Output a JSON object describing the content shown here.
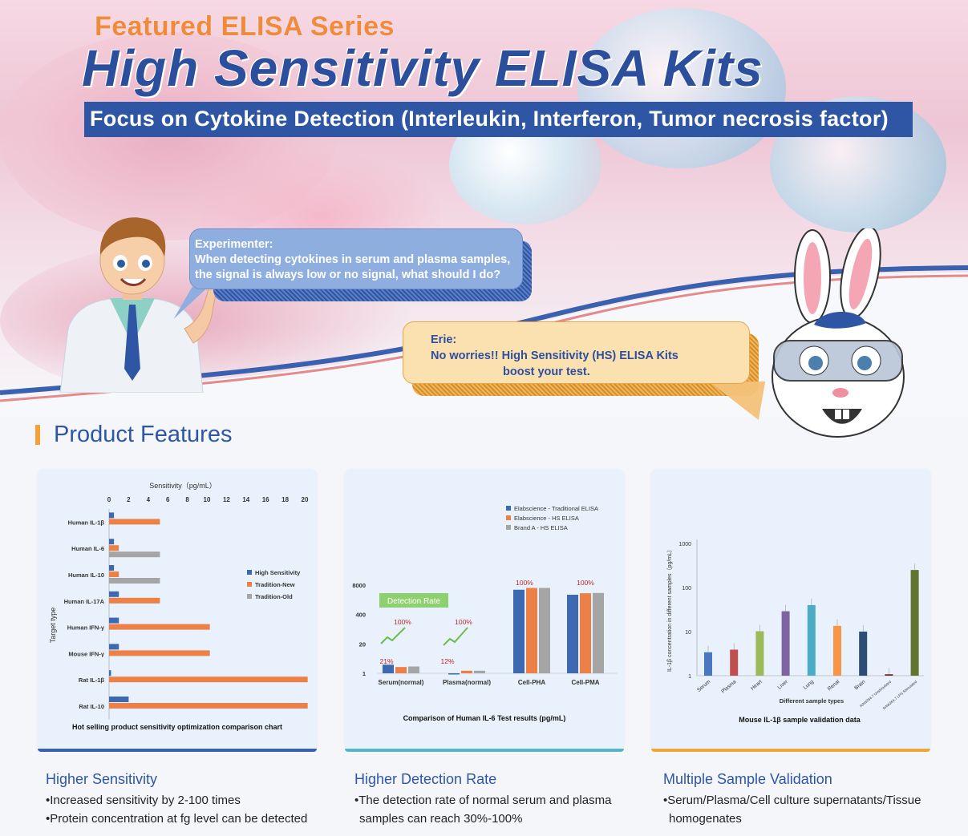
{
  "hero": {
    "series_label": "Featured ELISA Series",
    "title": "High Sensitivity ELISA Kits",
    "subtitle": "Focus on Cytokine Detection (Interleukin, Interferon, Tumor necrosis factor)"
  },
  "bubbles": {
    "experimenter": {
      "name": "Experimenter:",
      "line1": "When detecting cytokines in serum and plasma samples,",
      "line2": "the signal is always low or no signal, what should I do?"
    },
    "erie": {
      "name": "Erie:",
      "line1": "No worries!! High Sensitivity (HS) ELISA Kits",
      "line2": "boost your test."
    }
  },
  "section": {
    "title": "Product Features"
  },
  "features": [
    {
      "title": "Higher Sensitivity",
      "lines": [
        "•Increased sensitivity by 2-100 times",
        "•Protein concentration at fg level can be detected"
      ]
    },
    {
      "title": "Higher Detection Rate",
      "lines": [
        "•The detection rate of normal serum and plasma",
        "samples can reach 30%-100%"
      ]
    },
    {
      "title": "Multiple Sample Validation",
      "lines": [
        "•Serum/Plasma/Cell culture supernatants/Tissue",
        "homogenates"
      ]
    }
  ],
  "colors": {
    "blue": "#3c69b2",
    "orange": "#ec8046",
    "gray": "#a5a5a5",
    "navy": "#2f56a5",
    "accent": "#f3a23a"
  },
  "chart_data": [
    {
      "type": "bar",
      "orientation": "horizontal",
      "title": "Hot selling product sensitivity optimization comparison chart",
      "xlabel": "Sensitivity（pg/mL）",
      "ylabel": "Target type",
      "xticks": [
        "0",
        "2",
        "4",
        "6",
        "8",
        "10",
        "12",
        "14",
        "16",
        "18",
        "20"
      ],
      "xlim": [
        0,
        20
      ],
      "legend_position": "right",
      "categories": [
        "Human IL-1β",
        "Human IL-6",
        "Human IL-10",
        "Human IL-17A",
        "Human IFN-γ",
        "Mouse IFN-γ",
        "Rat IL-1β",
        "Rat IL-10"
      ],
      "series": [
        {
          "name": "High Sensitivity",
          "values": [
            0.5,
            0.5,
            0.5,
            1.0,
            1.0,
            1.0,
            0.2,
            2.0
          ]
        },
        {
          "name": "Tradition-New",
          "values": [
            5.2,
            1.0,
            1.0,
            5.2,
            10.3,
            10.3,
            20.3,
            20.3
          ]
        },
        {
          "name": "Tradition-Old",
          "values": [
            null,
            5.2,
            5.2,
            null,
            null,
            null,
            null,
            null
          ]
        }
      ]
    },
    {
      "type": "bar",
      "title": "Comparison of Human IL-6 Test results (pg/mL)",
      "yscale": "log",
      "yticks": [
        "1",
        "20",
        "400",
        "8000"
      ],
      "legend_position": "top-right",
      "categories": [
        "Serum(normal)",
        "Plasma(normal)",
        "Cell-PHA",
        "Cell-PMA"
      ],
      "series": [
        {
          "name": "Elabscience - Traditional ELISA",
          "values": [
            2.4,
            1.0,
            5000,
            3000
          ]
        },
        {
          "name": "Elabscience - HS ELISA",
          "values": [
            1.9,
            1.3,
            6000,
            3500
          ]
        },
        {
          "name": "Brand A - HS ELISA",
          "values": [
            2.0,
            1.3,
            6000,
            3600
          ]
        }
      ],
      "annotations": {
        "badge": "Detection Rate",
        "rates": [
          "21%",
          "100%",
          "12%",
          "100%",
          "100%",
          "100%"
        ]
      }
    },
    {
      "type": "bar",
      "title": "Mouse IL-1β sample validation data",
      "xlabel": "Different sample types",
      "ylabel": "IL-1β concentration in different samples（pg/mL）",
      "yscale": "log",
      "yticks": [
        "1",
        "10",
        "100",
        "1000"
      ],
      "ylim": [
        1,
        1000
      ],
      "categories": [
        "Serum",
        "Plasma",
        "Heart",
        "Liver",
        "Lung",
        "Renal",
        "Brain",
        "RAW264.7 Unstimulated",
        "RAW264.7 LPS Stimulated"
      ],
      "values": [
        3.4,
        3.9,
        10.2,
        29,
        40,
        13.5,
        10,
        1.08,
        250
      ],
      "bar_colors": [
        "#4a78bf",
        "#c0504d",
        "#9bbb59",
        "#8064a2",
        "#4bacc6",
        "#f79646",
        "#2c4d75",
        "#772c2a",
        "#5f7530"
      ]
    }
  ]
}
